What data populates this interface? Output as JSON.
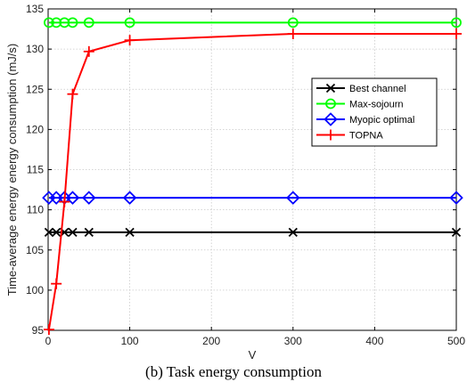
{
  "chart_data": {
    "type": "line",
    "title": "",
    "xlabel": "V",
    "ylabel": "Time-average energy energy consumption (mJ/s)",
    "xlim": [
      0,
      500
    ],
    "ylim": [
      95,
      135
    ],
    "xticks": [
      0,
      100,
      200,
      300,
      400,
      500
    ],
    "yticks": [
      95,
      100,
      105,
      110,
      115,
      120,
      125,
      130,
      135
    ],
    "grid": true,
    "legend_position": "upper-right",
    "x": [
      1,
      10,
      20,
      30,
      50,
      100,
      300,
      500
    ],
    "series": [
      {
        "name": "Best channel",
        "color": "#000000",
        "marker": "x",
        "values": [
          107.2,
          107.2,
          107.2,
          107.2,
          107.2,
          107.2,
          107.2,
          107.2
        ]
      },
      {
        "name": "Max-sojourn",
        "color": "#00ff00",
        "marker": "circle",
        "values": [
          133.3,
          133.3,
          133.3,
          133.3,
          133.3,
          133.3,
          133.3,
          133.3
        ]
      },
      {
        "name": "Myopic optimal",
        "color": "#0000ff",
        "marker": "diamond",
        "values": [
          111.5,
          111.5,
          111.5,
          111.5,
          111.5,
          111.5,
          111.5,
          111.5
        ]
      },
      {
        "name": "TOPNA",
        "color": "#ff0000",
        "marker": "plus",
        "values": [
          95.1,
          100.8,
          111.0,
          124.4,
          129.7,
          131.1,
          131.9,
          131.9
        ]
      }
    ]
  },
  "caption": "(b) Task energy consumption"
}
